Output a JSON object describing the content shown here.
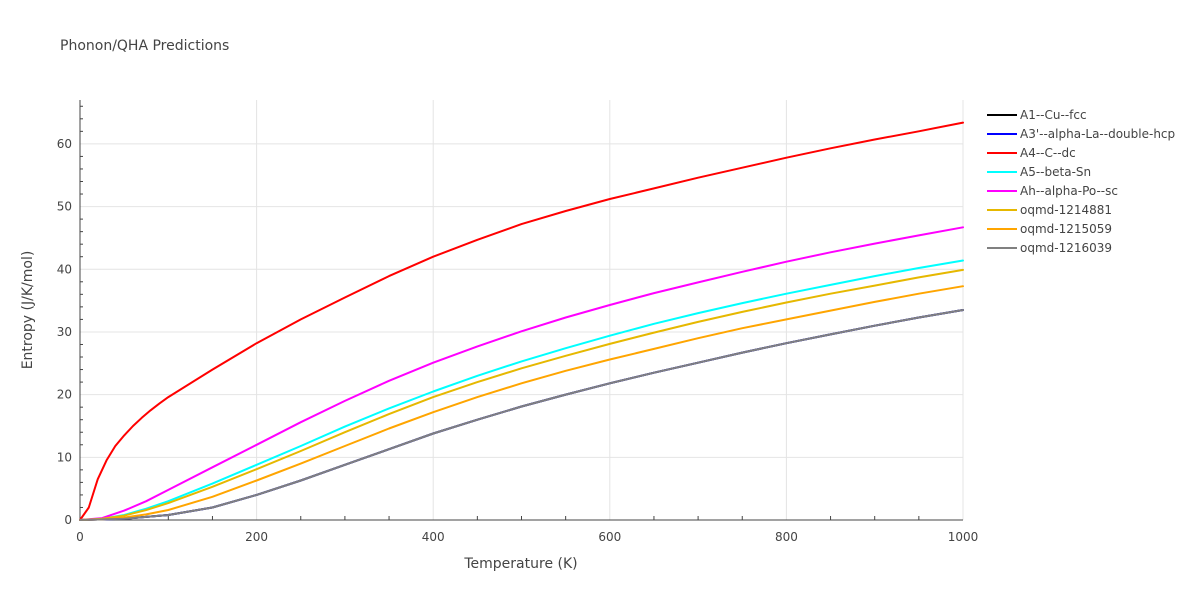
{
  "chart_data": {
    "type": "line",
    "title": "Phonon/QHA Predictions",
    "xlabel": "Temperature (K)",
    "ylabel": "Entropy (J/K/mol)",
    "xlim": [
      0,
      1000
    ],
    "ylim": [
      0,
      67
    ],
    "xticks": [
      0,
      200,
      400,
      600,
      800,
      1000
    ],
    "yticks": [
      0,
      10,
      20,
      30,
      40,
      50,
      60
    ],
    "grid": true,
    "legend_position": "right",
    "series": [
      {
        "name": "A1--Cu--fcc",
        "color": "#000000",
        "x": [
          0,
          50,
          100,
          150,
          200,
          250,
          300,
          350,
          400,
          450,
          500,
          550,
          600,
          650,
          700,
          750,
          800,
          850,
          900,
          950,
          1000
        ],
        "y": [
          0,
          0.2,
          0.8,
          2,
          4,
          6.3,
          8.8,
          11.3,
          13.8,
          16,
          18.1,
          20,
          21.8,
          23.5,
          25.1,
          26.7,
          28.2,
          29.6,
          31,
          32.3,
          33.5
        ]
      },
      {
        "name": "A3'--alpha-La--double-hcp",
        "color": "#0000ff",
        "x": [
          0,
          50,
          100,
          150,
          200,
          250,
          300,
          350,
          400,
          450,
          500,
          550,
          600,
          650,
          700,
          750,
          800,
          850,
          900,
          950,
          1000
        ],
        "y": [
          0,
          0.2,
          0.8,
          2,
          4,
          6.3,
          8.8,
          11.3,
          13.8,
          16,
          18.1,
          20,
          21.8,
          23.5,
          25.1,
          26.7,
          28.2,
          29.6,
          31,
          32.3,
          33.5
        ]
      },
      {
        "name": "A4--C--dc",
        "color": "#ff0000",
        "x": [
          0,
          10,
          20,
          30,
          40,
          50,
          60,
          70,
          80,
          90,
          100,
          150,
          200,
          250,
          300,
          350,
          400,
          450,
          500,
          550,
          600,
          650,
          700,
          750,
          800,
          850,
          900,
          950,
          1000
        ],
        "y": [
          0,
          2,
          6.5,
          9.5,
          11.8,
          13.5,
          15,
          16.3,
          17.5,
          18.6,
          19.6,
          24,
          28.2,
          32,
          35.5,
          38.9,
          42,
          44.7,
          47.2,
          49.3,
          51.2,
          52.9,
          54.6,
          56.2,
          57.8,
          59.3,
          60.7,
          62,
          63.4
        ]
      },
      {
        "name": "A5--beta-Sn",
        "color": "#00ffff",
        "x": [
          0,
          25,
          50,
          75,
          100,
          150,
          200,
          250,
          300,
          350,
          400,
          450,
          500,
          550,
          600,
          650,
          700,
          750,
          800,
          850,
          900,
          950,
          1000
        ],
        "y": [
          0,
          0.2,
          0.8,
          1.8,
          3,
          5.8,
          8.8,
          11.8,
          14.9,
          17.8,
          20.5,
          23,
          25.3,
          27.4,
          29.4,
          31.3,
          33,
          34.6,
          36.1,
          37.5,
          38.9,
          40.2,
          41.4
        ]
      },
      {
        "name": "Ah--alpha-Po--sc",
        "color": "#ff00ff",
        "x": [
          0,
          25,
          50,
          75,
          100,
          150,
          200,
          250,
          300,
          350,
          400,
          450,
          500,
          550,
          600,
          650,
          700,
          750,
          800,
          850,
          900,
          950,
          1000
        ],
        "y": [
          0,
          0.3,
          1.5,
          3,
          4.8,
          8.4,
          12,
          15.6,
          19,
          22.2,
          25.1,
          27.7,
          30.1,
          32.3,
          34.3,
          36.2,
          37.9,
          39.6,
          41.2,
          42.7,
          44.1,
          45.4,
          46.7
        ]
      },
      {
        "name": "oqmd-1214881",
        "color": "#e6b800",
        "x": [
          0,
          25,
          50,
          75,
          100,
          150,
          200,
          250,
          300,
          350,
          400,
          450,
          500,
          550,
          600,
          650,
          700,
          750,
          800,
          850,
          900,
          950,
          1000
        ],
        "y": [
          0,
          0.2,
          0.7,
          1.6,
          2.7,
          5.3,
          8.1,
          11,
          14,
          16.9,
          19.6,
          22,
          24.2,
          26.2,
          28.1,
          29.9,
          31.6,
          33.2,
          34.7,
          36.1,
          37.4,
          38.7,
          39.9
        ]
      },
      {
        "name": "oqmd-1215059",
        "color": "#ffa500",
        "x": [
          0,
          25,
          50,
          75,
          100,
          150,
          200,
          250,
          300,
          350,
          400,
          450,
          500,
          550,
          600,
          650,
          700,
          750,
          800,
          850,
          900,
          950,
          1000
        ],
        "y": [
          0,
          0.1,
          0.4,
          0.9,
          1.6,
          3.7,
          6.3,
          9,
          11.8,
          14.6,
          17.2,
          19.6,
          21.8,
          23.8,
          25.6,
          27.3,
          29,
          30.6,
          32,
          33.4,
          34.8,
          36.1,
          37.3
        ]
      },
      {
        "name": "oqmd-1216039",
        "color": "#808080",
        "x": [
          0,
          50,
          100,
          150,
          200,
          250,
          300,
          350,
          400,
          450,
          500,
          550,
          600,
          650,
          700,
          750,
          800,
          850,
          900,
          950,
          1000
        ],
        "y": [
          0,
          0.2,
          0.8,
          2,
          4,
          6.3,
          8.8,
          11.3,
          13.8,
          16,
          18.1,
          20,
          21.8,
          23.5,
          25.1,
          26.7,
          28.2,
          29.6,
          31,
          32.3,
          33.5
        ]
      }
    ]
  }
}
